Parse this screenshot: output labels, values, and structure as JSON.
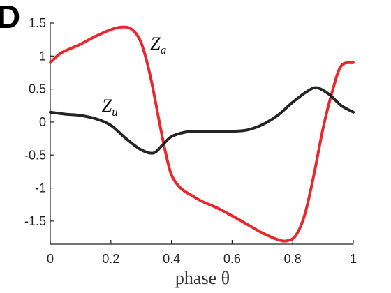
{
  "panel_label": "D",
  "chart_data": {
    "type": "line",
    "xlabel": "phase θ",
    "ylabel": "",
    "xlim": [
      0,
      1
    ],
    "ylim": [
      -1.85,
      1.5
    ],
    "x_ticks": [
      0,
      0.2,
      0.4,
      0.6,
      0.8,
      1
    ],
    "x_tick_labels": [
      "0",
      "0.2",
      "0.4",
      "0.6",
      "0.8",
      "1"
    ],
    "y_ticks": [
      1.5,
      1,
      0.5,
      0,
      -0.5,
      -1,
      -1.5
    ],
    "y_tick_labels": [
      "1.5",
      "1",
      "0.5",
      "0",
      "-0.5",
      "-1",
      "-1.5"
    ],
    "grid": false,
    "series": [
      {
        "name": "Z_a",
        "label_main": "Z",
        "label_sub": "a",
        "color": "#e8151b",
        "x": [
          0,
          0.03,
          0.06,
          0.1,
          0.15,
          0.2,
          0.24,
          0.27,
          0.3,
          0.33,
          0.36,
          0.38,
          0.4,
          0.43,
          0.47,
          0.5,
          0.55,
          0.6,
          0.65,
          0.7,
          0.75,
          0.78,
          0.81,
          0.84,
          0.87,
          0.9,
          0.93,
          0.96,
          1.0
        ],
        "y": [
          0.9,
          1.03,
          1.1,
          1.18,
          1.3,
          1.4,
          1.44,
          1.4,
          1.2,
          0.7,
          0.0,
          -0.45,
          -0.8,
          -1.0,
          -1.12,
          -1.2,
          -1.3,
          -1.42,
          -1.55,
          -1.68,
          -1.78,
          -1.8,
          -1.72,
          -1.4,
          -0.8,
          -0.1,
          0.45,
          0.85,
          0.9
        ]
      },
      {
        "name": "Z_u",
        "label_main": "Z",
        "label_sub": "u",
        "color": "#111111",
        "x": [
          0,
          0.05,
          0.1,
          0.15,
          0.2,
          0.25,
          0.3,
          0.34,
          0.37,
          0.4,
          0.45,
          0.5,
          0.55,
          0.6,
          0.65,
          0.7,
          0.75,
          0.8,
          0.85,
          0.88,
          0.92,
          0.96,
          1.0
        ],
        "y": [
          0.15,
          0.12,
          0.1,
          0.05,
          -0.05,
          -0.25,
          -0.42,
          -0.47,
          -0.35,
          -0.22,
          -0.15,
          -0.14,
          -0.14,
          -0.14,
          -0.12,
          -0.04,
          0.1,
          0.3,
          0.47,
          0.52,
          0.42,
          0.25,
          0.15
        ]
      }
    ],
    "annotations": [
      {
        "series": "Z_a",
        "text_main": "Z",
        "text_sub": "a",
        "x": 0.33,
        "y": 1.1
      },
      {
        "series": "Z_u",
        "text_main": "Z",
        "text_sub": "u",
        "x": 0.17,
        "y": 0.16
      }
    ]
  }
}
